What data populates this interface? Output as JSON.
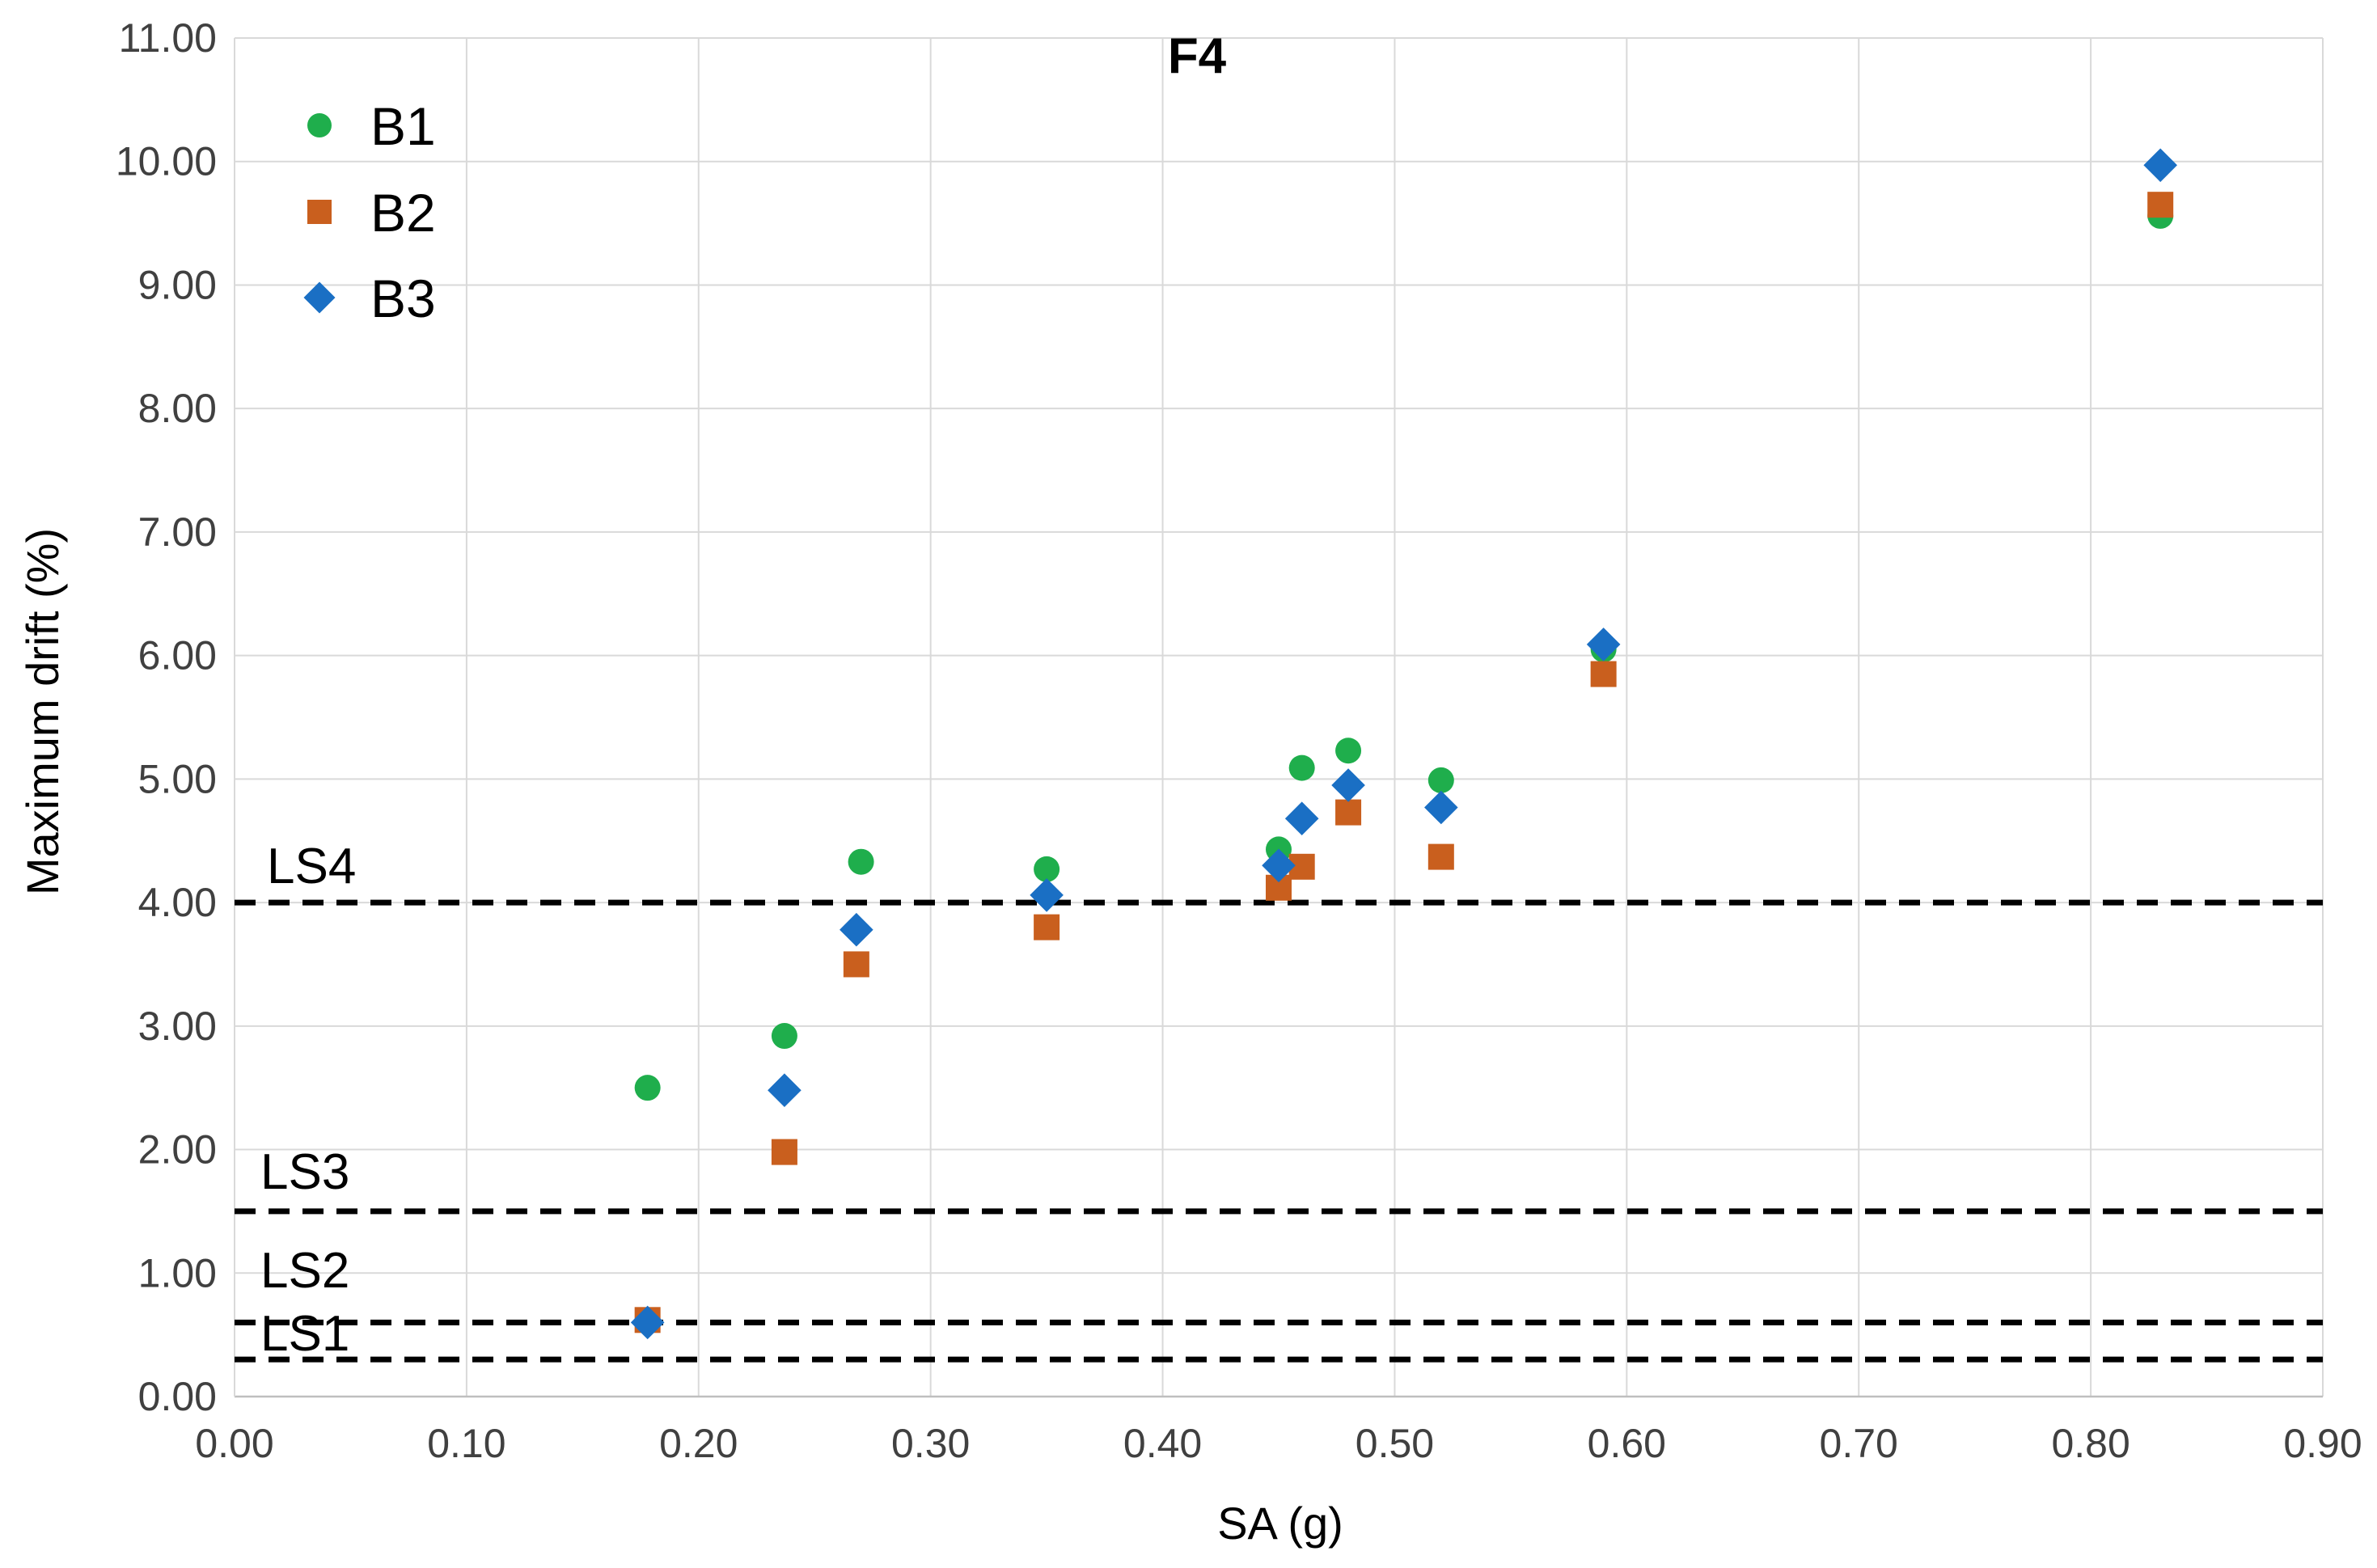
{
  "chart_data": {
    "type": "scatter",
    "title": "F4",
    "xlabel": "SA (g)",
    "ylabel": "Maximum drift (%)",
    "xlim": [
      0,
      0.9
    ],
    "ylim": [
      0,
      11
    ],
    "x_ticks": [
      "0.00",
      "0.10",
      "0.20",
      "0.30",
      "0.40",
      "0.50",
      "0.60",
      "0.70",
      "0.80",
      "0.90"
    ],
    "y_ticks": [
      "0.00",
      "1.00",
      "2.00",
      "3.00",
      "4.00",
      "5.00",
      "6.00",
      "7.00",
      "8.00",
      "9.00",
      "10.00",
      "11.00"
    ],
    "grid": true,
    "legend_position": "top-left",
    "series": [
      {
        "name": "B1",
        "marker": "circle",
        "color": "#1fae4c",
        "points": [
          {
            "x": 0.178,
            "y": 2.5
          },
          {
            "x": 0.237,
            "y": 2.92
          },
          {
            "x": 0.27,
            "y": 4.33
          },
          {
            "x": 0.35,
            "y": 4.27
          },
          {
            "x": 0.45,
            "y": 4.43
          },
          {
            "x": 0.46,
            "y": 5.09
          },
          {
            "x": 0.48,
            "y": 5.23
          },
          {
            "x": 0.52,
            "y": 4.99
          },
          {
            "x": 0.59,
            "y": 6.05
          },
          {
            "x": 0.83,
            "y": 9.56
          }
        ]
      },
      {
        "name": "B2",
        "marker": "square",
        "color": "#c95f1e",
        "points": [
          {
            "x": 0.178,
            "y": 0.62
          },
          {
            "x": 0.237,
            "y": 1.98
          },
          {
            "x": 0.268,
            "y": 3.5
          },
          {
            "x": 0.35,
            "y": 3.8
          },
          {
            "x": 0.45,
            "y": 4.12
          },
          {
            "x": 0.46,
            "y": 4.29
          },
          {
            "x": 0.48,
            "y": 4.73
          },
          {
            "x": 0.52,
            "y": 4.37
          },
          {
            "x": 0.59,
            "y": 5.85
          },
          {
            "x": 0.83,
            "y": 9.65
          }
        ]
      },
      {
        "name": "B3",
        "marker": "diamond",
        "color": "#1a6fc4",
        "points": [
          {
            "x": 0.178,
            "y": 0.6
          },
          {
            "x": 0.237,
            "y": 2.48
          },
          {
            "x": 0.268,
            "y": 3.78
          },
          {
            "x": 0.35,
            "y": 4.06
          },
          {
            "x": 0.45,
            "y": 4.3
          },
          {
            "x": 0.46,
            "y": 4.68
          },
          {
            "x": 0.48,
            "y": 4.95
          },
          {
            "x": 0.52,
            "y": 4.77
          },
          {
            "x": 0.59,
            "y": 6.09
          },
          {
            "x": 0.83,
            "y": 9.97
          }
        ]
      }
    ],
    "limit_states": [
      {
        "label": "LS1",
        "y": 0.3
      },
      {
        "label": "LS2",
        "y": 0.6
      },
      {
        "label": "LS3",
        "y": 1.5
      },
      {
        "label": "LS4",
        "y": 4.0
      }
    ],
    "colors": {
      "grid": "#d9d9d9",
      "limit_line": "#000000"
    }
  }
}
